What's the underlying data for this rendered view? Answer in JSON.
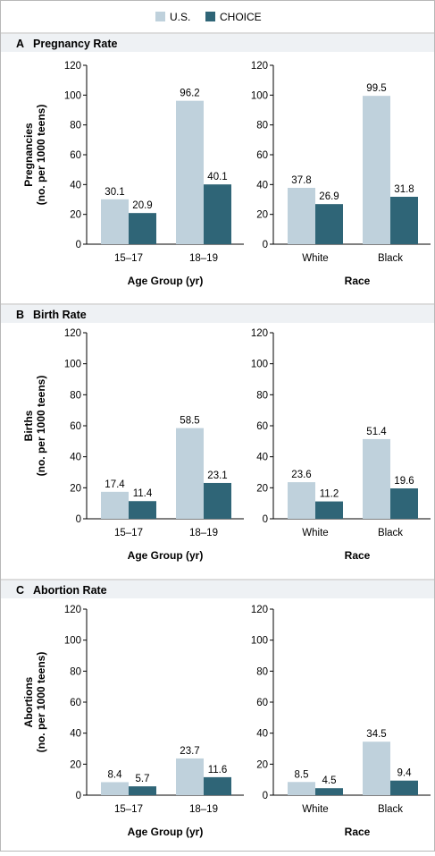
{
  "legend": {
    "items": [
      {
        "label": "U.S.",
        "color": "#bfd1dc"
      },
      {
        "label": "CHOICE",
        "color": "#2f6577"
      }
    ]
  },
  "colors": {
    "us": "#bfd1dc",
    "choice": "#2f6577",
    "panel_header_bg": "#eef1f4",
    "border": "#b8b8b8"
  },
  "chart_data": [
    {
      "panel": "A",
      "title": "Pregnancy Rate",
      "type": "bar",
      "ylabel": "Pregnancies (no. per 1000 teens)",
      "ylabel_lines": [
        "Pregnancies",
        "(no. per 1000 teens)"
      ],
      "ylim": [
        0,
        120
      ],
      "yticks": [
        0,
        20,
        40,
        60,
        80,
        100,
        120
      ],
      "series_names": [
        "U.S.",
        "CHOICE"
      ],
      "subcharts": [
        {
          "xlabel": "Age Group (yr)",
          "categories": [
            "15–17",
            "18–19"
          ],
          "series": [
            {
              "name": "U.S.",
              "values": [
                30.1,
                96.2
              ]
            },
            {
              "name": "CHOICE",
              "values": [
                20.9,
                40.1
              ]
            }
          ]
        },
        {
          "xlabel": "Race",
          "categories": [
            "White",
            "Black"
          ],
          "series": [
            {
              "name": "U.S.",
              "values": [
                37.8,
                99.5
              ]
            },
            {
              "name": "CHOICE",
              "values": [
                26.9,
                31.8
              ]
            }
          ]
        }
      ]
    },
    {
      "panel": "B",
      "title": "Birth Rate",
      "type": "bar",
      "ylabel": "Births (no. per 1000 teens)",
      "ylabel_lines": [
        "Births",
        "(no. per 1000 teens)"
      ],
      "ylim": [
        0,
        120
      ],
      "yticks": [
        0,
        20,
        40,
        60,
        80,
        100,
        120
      ],
      "series_names": [
        "U.S.",
        "CHOICE"
      ],
      "subcharts": [
        {
          "xlabel": "Age Group (yr)",
          "categories": [
            "15–17",
            "18–19"
          ],
          "series": [
            {
              "name": "U.S.",
              "values": [
                17.4,
                58.5
              ]
            },
            {
              "name": "CHOICE",
              "values": [
                11.4,
                23.1
              ]
            }
          ]
        },
        {
          "xlabel": "Race",
          "categories": [
            "White",
            "Black"
          ],
          "series": [
            {
              "name": "U.S.",
              "values": [
                23.6,
                51.4
              ]
            },
            {
              "name": "CHOICE",
              "values": [
                11.2,
                19.6
              ]
            }
          ]
        }
      ]
    },
    {
      "panel": "C",
      "title": "Abortion Rate",
      "type": "bar",
      "ylabel": "Abortions (no. per 1000 teens)",
      "ylabel_lines": [
        "Abortions",
        "(no. per 1000 teens)"
      ],
      "ylim": [
        0,
        120
      ],
      "yticks": [
        0,
        20,
        40,
        60,
        80,
        100,
        120
      ],
      "series_names": [
        "U.S.",
        "CHOICE"
      ],
      "subcharts": [
        {
          "xlabel": "Age Group (yr)",
          "categories": [
            "15–17",
            "18–19"
          ],
          "series": [
            {
              "name": "U.S.",
              "values": [
                8.4,
                23.7
              ]
            },
            {
              "name": "CHOICE",
              "values": [
                5.7,
                11.6
              ]
            }
          ]
        },
        {
          "xlabel": "Race",
          "categories": [
            "White",
            "Black"
          ],
          "series": [
            {
              "name": "U.S.",
              "values": [
                8.5,
                34.5
              ]
            },
            {
              "name": "CHOICE",
              "values": [
                4.5,
                9.4
              ]
            }
          ]
        }
      ]
    }
  ]
}
